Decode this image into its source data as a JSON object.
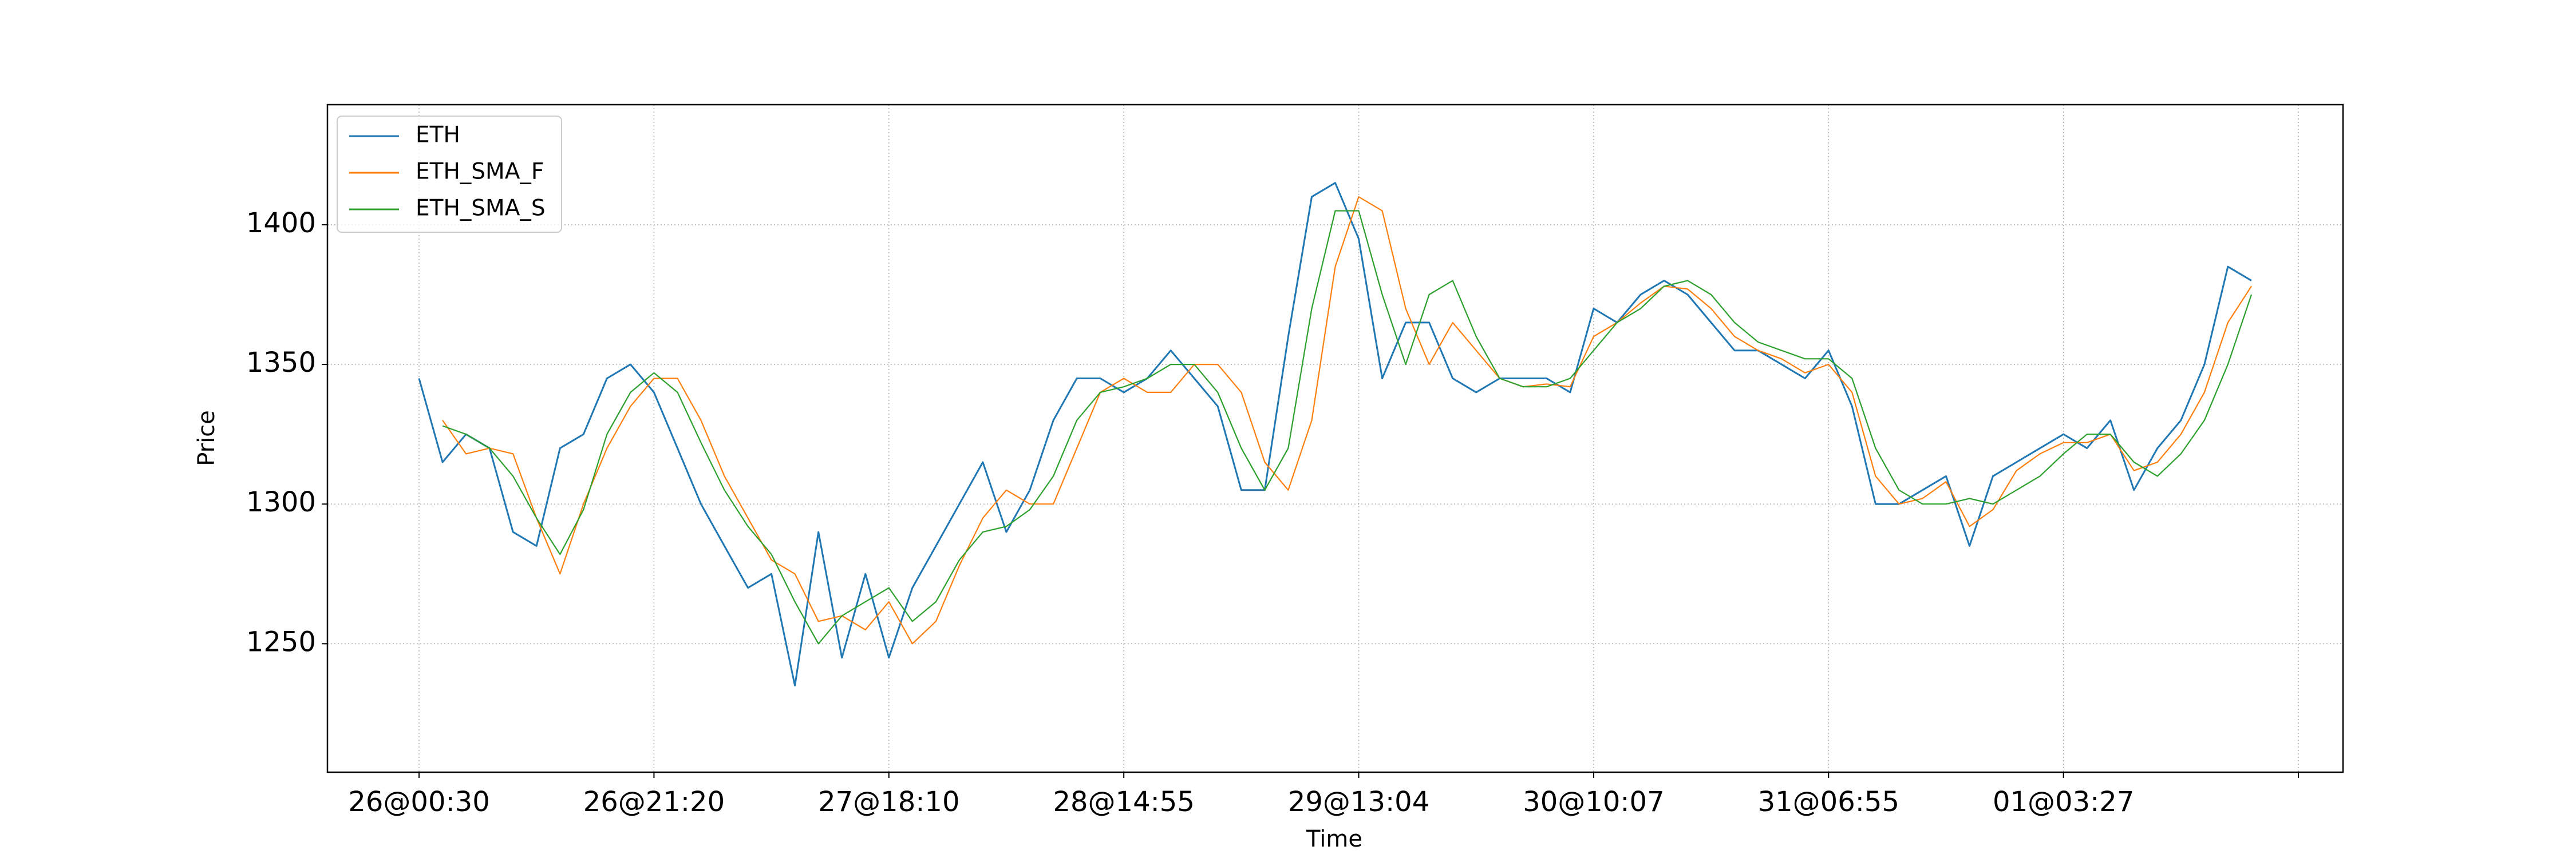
{
  "chart_data": {
    "type": "line",
    "xlabel": "Time",
    "ylabel": "Price",
    "x": [
      0,
      100,
      200,
      300,
      400,
      500,
      600,
      700,
      800,
      900,
      1000,
      1100,
      1200,
      1300,
      1400,
      1500,
      1600,
      1700,
      1800,
      1900,
      2000,
      2100,
      2200,
      2300,
      2400,
      2500,
      2600,
      2700,
      2800,
      2900,
      3000,
      3100,
      3200,
      3300,
      3400,
      3500,
      3600,
      3700,
      3800,
      3900,
      4000,
      4100,
      4200,
      4300,
      4400,
      4500,
      4600,
      4700,
      4800,
      4900,
      5000,
      5100,
      5200,
      5300,
      5400,
      5500,
      5600,
      5700,
      5800,
      5900,
      6000,
      6100,
      6200,
      6300,
      6400,
      6500,
      6600,
      6700,
      6800,
      6900,
      7000,
      7100,
      7200,
      7300,
      7400,
      7500,
      7600,
      7700,
      7800
    ],
    "series": [
      {
        "name": "ETH",
        "color": "#1f77b4",
        "values": [
          1345,
          1315,
          1325,
          1320,
          1290,
          1285,
          1320,
          1325,
          1345,
          1350,
          1340,
          1320,
          1300,
          1285,
          1270,
          1275,
          1235,
          1290,
          1245,
          1275,
          1245,
          1270,
          1285,
          1300,
          1315,
          1290,
          1305,
          1330,
          1345,
          1345,
          1340,
          1345,
          1355,
          1345,
          1335,
          1305,
          1305,
          1360,
          1410,
          1415,
          1395,
          1345,
          1365,
          1365,
          1345,
          1340,
          1345,
          1345,
          1345,
          1340,
          1370,
          1365,
          1375,
          1380,
          1375,
          1365,
          1355,
          1355,
          1350,
          1345,
          1355,
          1335,
          1300,
          1300,
          1305,
          1310,
          1285,
          1310,
          1315,
          1320,
          1325,
          1320,
          1330,
          1305,
          1320,
          1330,
          1350,
          1385,
          1380
        ]
      },
      {
        "name": "ETH_SMA_F",
        "color": "#ff7f0e",
        "values": [
          null,
          1330,
          1318,
          1320,
          1318,
          1295,
          1275,
          1300,
          1320,
          1335,
          1345,
          1345,
          1330,
          1310,
          1295,
          1280,
          1275,
          1258,
          1260,
          1255,
          1265,
          1250,
          1258,
          1278,
          1295,
          1305,
          1300,
          1300,
          1320,
          1340,
          1345,
          1340,
          1340,
          1350,
          1350,
          1340,
          1315,
          1305,
          1330,
          1385,
          1410,
          1405,
          1370,
          1350,
          1365,
          1355,
          1345,
          1342,
          1343,
          1342,
          1360,
          1365,
          1372,
          1378,
          1377,
          1370,
          1360,
          1355,
          1352,
          1347,
          1350,
          1340,
          1310,
          1300,
          1302,
          1308,
          1292,
          1298,
          1312,
          1318,
          1322,
          1322,
          1325,
          1312,
          1315,
          1325,
          1340,
          1365,
          1378
        ]
      },
      {
        "name": "ETH_SMA_S",
        "color": "#2ca02c",
        "values": [
          null,
          1328,
          1325,
          1320,
          1310,
          1295,
          1282,
          1298,
          1325,
          1340,
          1347,
          1340,
          1322,
          1305,
          1292,
          1282,
          1265,
          1250,
          1260,
          1265,
          1270,
          1258,
          1265,
          1280,
          1290,
          1292,
          1298,
          1310,
          1330,
          1340,
          1342,
          1345,
          1350,
          1350,
          1340,
          1320,
          1305,
          1320,
          1370,
          1405,
          1405,
          1375,
          1350,
          1375,
          1380,
          1360,
          1345,
          1342,
          1342,
          1345,
          1355,
          1365,
          1370,
          1378,
          1380,
          1375,
          1365,
          1358,
          1355,
          1352,
          1352,
          1345,
          1320,
          1305,
          1300,
          1300,
          1302,
          1300,
          1305,
          1310,
          1318,
          1325,
          1325,
          1315,
          1310,
          1318,
          1330,
          1350,
          1375
        ]
      }
    ],
    "xlim": [
      -390,
      8190
    ],
    "xticks": [
      {
        "value": 0,
        "label": "26@00:30"
      },
      {
        "value": 1000,
        "label": "26@21:20"
      },
      {
        "value": 2000,
        "label": "27@18:10"
      },
      {
        "value": 3000,
        "label": "28@14:55"
      },
      {
        "value": 4000,
        "label": "29@13:04"
      },
      {
        "value": 5000,
        "label": "30@10:07"
      },
      {
        "value": 6000,
        "label": "31@06:55"
      },
      {
        "value": 7000,
        "label": "01@03:27"
      },
      {
        "value": 8000,
        "label": null
      }
    ],
    "ylim": [
      1204,
      1443
    ],
    "yticks": [
      1250,
      1300,
      1350,
      1400
    ],
    "grid": true,
    "legend": "upper left"
  }
}
